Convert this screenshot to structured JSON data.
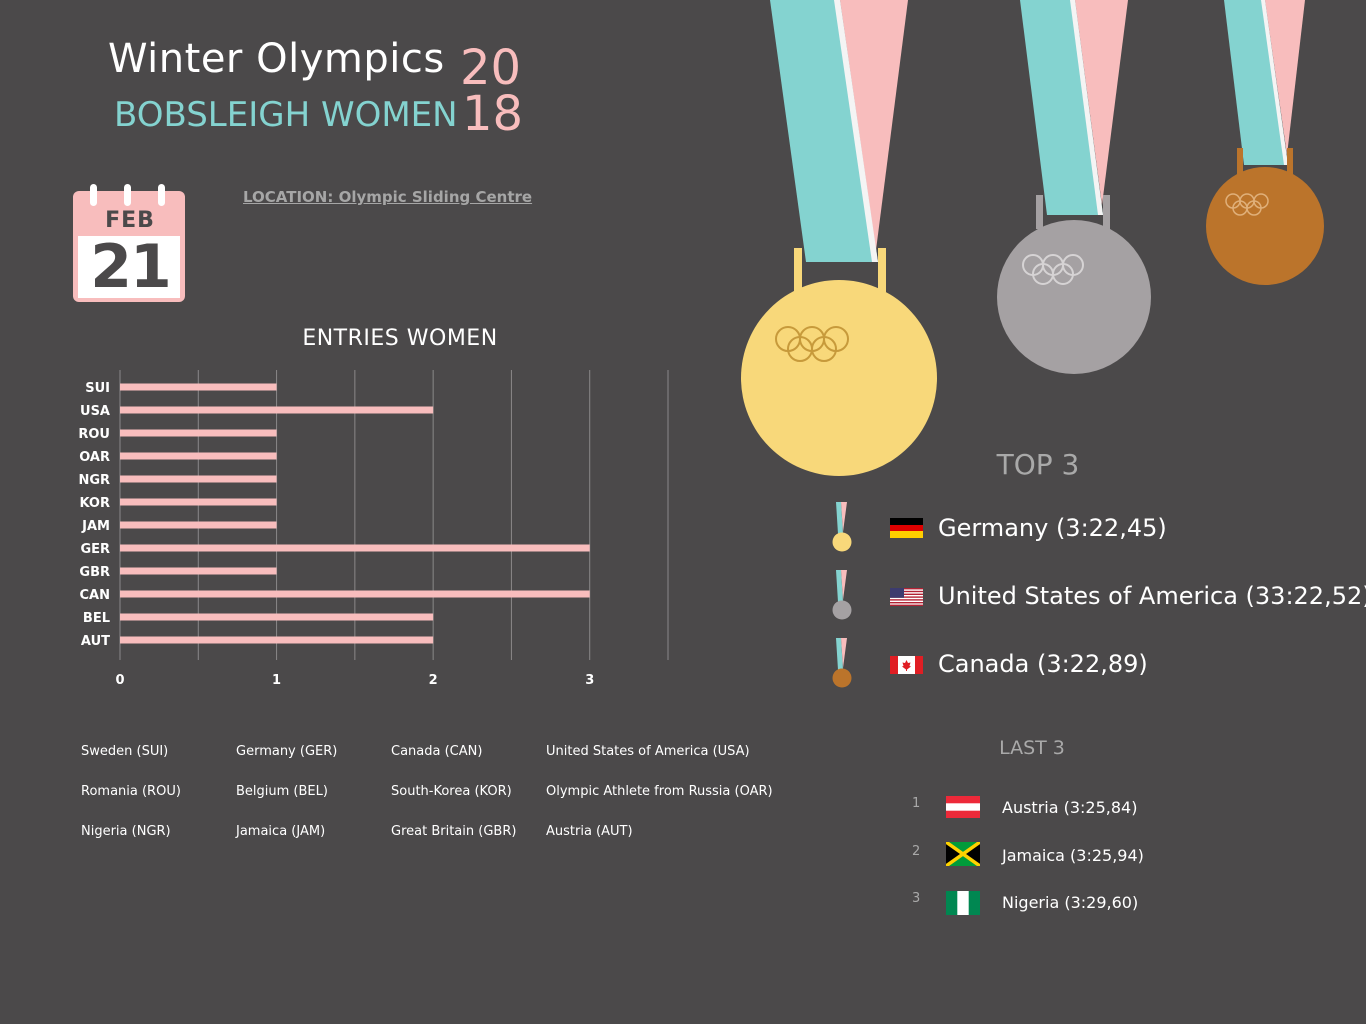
{
  "header": {
    "title": "Winter Olympics",
    "subtitle": "BOBSLEIGH WOMEN",
    "year_part1": "20",
    "year_part2": "18",
    "location": "LOCATION: Olympic Sliding Centre"
  },
  "calendar": {
    "month": "FEB",
    "day": "21"
  },
  "chart_data": {
    "type": "bar",
    "orientation": "horizontal",
    "title": "ENTRIES WOMEN",
    "categories": [
      "SUI",
      "USA",
      "ROU",
      "OAR",
      "NGR",
      "KOR",
      "JAM",
      "GER",
      "GBR",
      "CAN",
      "BEL",
      "AUT"
    ],
    "values": [
      1,
      2,
      1,
      1,
      1,
      1,
      1,
      3,
      1,
      3,
      2,
      2
    ],
    "xlim": [
      0,
      3.5
    ],
    "xticks": [
      "0",
      "1",
      "2",
      "3"
    ],
    "grid": true,
    "bar_color": "#f8bdbd"
  },
  "legend": [
    [
      "Sweden (SUI)",
      "Germany (GER)",
      "Canada (CAN)",
      "United States of America (USA)"
    ],
    [
      "Romania (ROU)",
      "Belgium (BEL)",
      "South-Korea (KOR)",
      "Olympic Athlete from Russia (OAR)"
    ],
    [
      "Nigeria (NGR)",
      "Jamaica (JAM)",
      "Great Britain (GBR)",
      "Austria (AUT)"
    ]
  ],
  "top3": {
    "title": "TOP 3",
    "items": [
      {
        "text": "Germany (3:22,45)",
        "medal": "gold",
        "flag": "germany-flag"
      },
      {
        "text": "United States of America (33:22,52)",
        "medal": "silver",
        "flag": "usa-flag"
      },
      {
        "text": "Canada (3:22,89)",
        "medal": "bronze",
        "flag": "canada-flag"
      }
    ]
  },
  "last3": {
    "title": "LAST 3",
    "items": [
      {
        "rank": "1",
        "text": "Austria (3:25,84)",
        "flag": "austria-flag"
      },
      {
        "rank": "2",
        "text": "Jamaica (3:25,94)",
        "flag": "jamaica-flag"
      },
      {
        "rank": "3",
        "text": "Nigeria (3:29,60)",
        "flag": "nigeria-flag"
      }
    ]
  },
  "colors": {
    "background": "#4b494a",
    "pink": "#f8bdbd",
    "teal": "#84d3d0",
    "gold": "#f8d87a",
    "silver": "#a5a1a3",
    "bronze": "#bb742b"
  }
}
